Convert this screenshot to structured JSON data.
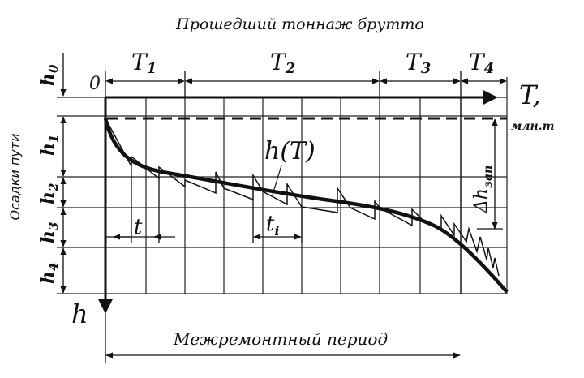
{
  "title": "Прошедший тоннаж брутто",
  "origin_label": "0",
  "axes": {
    "x_symbol": "T,",
    "x_unit": "млн.т",
    "y_symbol": "h",
    "y_title": "Осадки пути"
  },
  "periods": [
    {
      "main": "T",
      "sub": "1"
    },
    {
      "main": "T",
      "sub": "2"
    },
    {
      "main": "T",
      "sub": "3"
    },
    {
      "main": "T",
      "sub": "4"
    }
  ],
  "depths": [
    {
      "main": "h",
      "sub": "0"
    },
    {
      "main": "h",
      "sub": "1"
    },
    {
      "main": "h",
      "sub": "2"
    },
    {
      "main": "h",
      "sub": "3"
    },
    {
      "main": "h",
      "sub": "4"
    }
  ],
  "curve_label": "h(T)",
  "interval": {
    "main": "t"
  },
  "interval_i": {
    "main": "t",
    "sub": "i"
  },
  "reserve": {
    "prefix": "Δh",
    "sub": "зап"
  },
  "period_label": "Межремонтный период"
}
